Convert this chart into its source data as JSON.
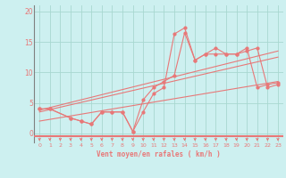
{
  "background_color": "#cdf0f0",
  "grid_color": "#a8d8d0",
  "line_color": "#e87878",
  "xlabel": "Vent moyen/en rafales ( km/h )",
  "xlim": [
    -0.5,
    23.5
  ],
  "ylim": [
    -1.5,
    21
  ],
  "yticks": [
    0,
    5,
    10,
    15,
    20
  ],
  "xticks": [
    0,
    1,
    2,
    3,
    4,
    5,
    6,
    7,
    8,
    9,
    10,
    11,
    12,
    13,
    14,
    15,
    16,
    17,
    18,
    19,
    20,
    21,
    22,
    23
  ],
  "series1_x": [
    0,
    1,
    3,
    4,
    5,
    6,
    7,
    8,
    9,
    10,
    11,
    12,
    13,
    14,
    15,
    16,
    17,
    18,
    19,
    20,
    21,
    22,
    23
  ],
  "series1_y": [
    4,
    4,
    2.5,
    2,
    1.5,
    3.5,
    3.5,
    3.5,
    0.3,
    3.5,
    6.5,
    7.5,
    16.3,
    17.3,
    12,
    13,
    14,
    13,
    13,
    14,
    7.5,
    8,
    8.3
  ],
  "series2_x": [
    0,
    1,
    3,
    4,
    5,
    6,
    7,
    8,
    9,
    10,
    11,
    12,
    13,
    14,
    15,
    16,
    17,
    18,
    19,
    20,
    21,
    22,
    23
  ],
  "series2_y": [
    4,
    4,
    2.5,
    2,
    1.5,
    3.5,
    3.5,
    3.5,
    0.3,
    5.5,
    7.5,
    8.5,
    9.5,
    16.5,
    12,
    13,
    13,
    13,
    13,
    13.5,
    14,
    7.5,
    8
  ],
  "trend1_x": [
    0,
    23
  ],
  "trend1_y": [
    3.8,
    13.5
  ],
  "trend2_x": [
    0,
    23
  ],
  "trend2_y": [
    3.5,
    12.5
  ],
  "trend3_x": [
    0,
    23
  ],
  "trend3_y": [
    2.0,
    8.5
  ]
}
